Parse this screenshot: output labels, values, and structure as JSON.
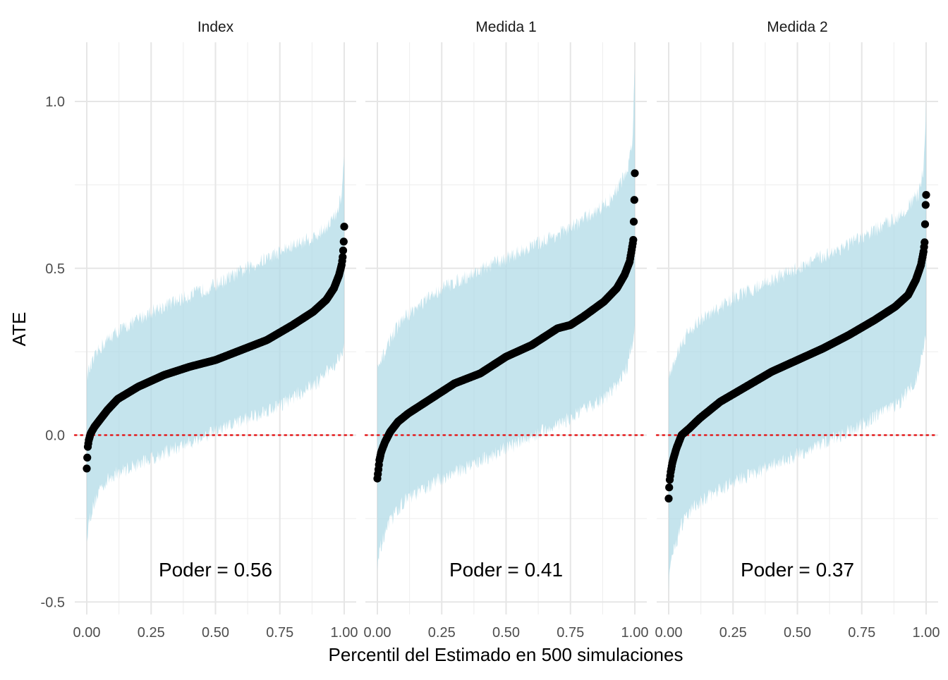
{
  "chart_data": {
    "type": "scatter",
    "xlabel": "Percentil del Estimado en 500 simulaciones",
    "ylabel": "ATE",
    "xlim": [
      0,
      1
    ],
    "ylim": [
      -0.5,
      1.1
    ],
    "x_ticks": [
      "0.00",
      "0.25",
      "0.50",
      "0.75",
      "1.00"
    ],
    "x_tick_values": [
      0,
      0.25,
      0.5,
      0.75,
      1.0
    ],
    "y_ticks": [
      "-0.5",
      "0.0",
      "0.5",
      "1.0"
    ],
    "y_tick_values": [
      -0.5,
      0,
      0.5,
      1.0
    ],
    "grid": true,
    "reference_line": {
      "y": 0,
      "style": "dotted",
      "color": "#e41a1c"
    },
    "n_simulations": 500,
    "band_color": "#add8e6",
    "point_color": "#000000",
    "panels": [
      {
        "title": "Index",
        "annotation": "Poder = 0.56",
        "estimate_curve": [
          {
            "x": 0.0,
            "y": -0.1
          },
          {
            "x": 0.004,
            "y": -0.035
          },
          {
            "x": 0.008,
            "y": -0.015
          },
          {
            "x": 0.015,
            "y": 0.005
          },
          {
            "x": 0.03,
            "y": 0.025
          },
          {
            "x": 0.05,
            "y": 0.045
          },
          {
            "x": 0.08,
            "y": 0.075
          },
          {
            "x": 0.12,
            "y": 0.108
          },
          {
            "x": 0.2,
            "y": 0.145
          },
          {
            "x": 0.3,
            "y": 0.18
          },
          {
            "x": 0.4,
            "y": 0.205
          },
          {
            "x": 0.5,
            "y": 0.225
          },
          {
            "x": 0.55,
            "y": 0.24
          },
          {
            "x": 0.6,
            "y": 0.255
          },
          {
            "x": 0.7,
            "y": 0.285
          },
          {
            "x": 0.8,
            "y": 0.33
          },
          {
            "x": 0.88,
            "y": 0.37
          },
          {
            "x": 0.93,
            "y": 0.405
          },
          {
            "x": 0.96,
            "y": 0.44
          },
          {
            "x": 0.98,
            "y": 0.48
          },
          {
            "x": 0.99,
            "y": 0.51
          },
          {
            "x": 0.995,
            "y": 0.54
          },
          {
            "x": 0.998,
            "y": 0.58
          },
          {
            "x": 1.0,
            "y": 0.625
          }
        ],
        "interval_lower": [
          {
            "x": 0.0,
            "y": -0.31
          },
          {
            "x": 0.01,
            "y": -0.25
          },
          {
            "x": 0.05,
            "y": -0.16
          },
          {
            "x": 0.1,
            "y": -0.12
          },
          {
            "x": 0.25,
            "y": -0.07
          },
          {
            "x": 0.5,
            "y": 0.01
          },
          {
            "x": 0.75,
            "y": 0.09
          },
          {
            "x": 0.9,
            "y": 0.16
          },
          {
            "x": 0.97,
            "y": 0.22
          },
          {
            "x": 1.0,
            "y": 0.27
          }
        ],
        "interval_upper": [
          {
            "x": 0.0,
            "y": 0.18
          },
          {
            "x": 0.05,
            "y": 0.26
          },
          {
            "x": 0.1,
            "y": 0.3
          },
          {
            "x": 0.25,
            "y": 0.37
          },
          {
            "x": 0.5,
            "y": 0.45
          },
          {
            "x": 0.75,
            "y": 0.55
          },
          {
            "x": 0.9,
            "y": 0.6
          },
          {
            "x": 0.97,
            "y": 0.66
          },
          {
            "x": 0.99,
            "y": 0.72
          },
          {
            "x": 1.0,
            "y": 0.84
          }
        ]
      },
      {
        "title": "Medida 1",
        "annotation": "Poder = 0.41",
        "estimate_curve": [
          {
            "x": 0.0,
            "y": -0.13
          },
          {
            "x": 0.003,
            "y": -0.11
          },
          {
            "x": 0.008,
            "y": -0.075
          },
          {
            "x": 0.015,
            "y": -0.05
          },
          {
            "x": 0.03,
            "y": -0.02
          },
          {
            "x": 0.05,
            "y": 0.01
          },
          {
            "x": 0.08,
            "y": 0.04
          },
          {
            "x": 0.12,
            "y": 0.065
          },
          {
            "x": 0.2,
            "y": 0.105
          },
          {
            "x": 0.3,
            "y": 0.155
          },
          {
            "x": 0.4,
            "y": 0.185
          },
          {
            "x": 0.5,
            "y": 0.235
          },
          {
            "x": 0.6,
            "y": 0.27
          },
          {
            "x": 0.7,
            "y": 0.32
          },
          {
            "x": 0.75,
            "y": 0.33
          },
          {
            "x": 0.8,
            "y": 0.355
          },
          {
            "x": 0.88,
            "y": 0.4
          },
          {
            "x": 0.93,
            "y": 0.44
          },
          {
            "x": 0.96,
            "y": 0.48
          },
          {
            "x": 0.98,
            "y": 0.52
          },
          {
            "x": 0.99,
            "y": 0.565
          },
          {
            "x": 0.995,
            "y": 0.59
          },
          {
            "x": 0.997,
            "y": 0.69
          },
          {
            "x": 0.999,
            "y": 0.72
          },
          {
            "x": 1.0,
            "y": 0.785
          }
        ],
        "interval_lower": [
          {
            "x": 0.0,
            "y": -0.41
          },
          {
            "x": 0.01,
            "y": -0.34
          },
          {
            "x": 0.05,
            "y": -0.26
          },
          {
            "x": 0.1,
            "y": -0.2
          },
          {
            "x": 0.25,
            "y": -0.13
          },
          {
            "x": 0.5,
            "y": -0.04
          },
          {
            "x": 0.75,
            "y": 0.05
          },
          {
            "x": 0.9,
            "y": 0.12
          },
          {
            "x": 0.97,
            "y": 0.2
          },
          {
            "x": 1.0,
            "y": 0.32
          }
        ],
        "interval_upper": [
          {
            "x": 0.0,
            "y": 0.19
          },
          {
            "x": 0.05,
            "y": 0.29
          },
          {
            "x": 0.1,
            "y": 0.35
          },
          {
            "x": 0.25,
            "y": 0.44
          },
          {
            "x": 0.5,
            "y": 0.53
          },
          {
            "x": 0.75,
            "y": 0.62
          },
          {
            "x": 0.9,
            "y": 0.7
          },
          {
            "x": 0.97,
            "y": 0.79
          },
          {
            "x": 0.99,
            "y": 0.88
          },
          {
            "x": 1.0,
            "y": 1.1
          }
        ]
      },
      {
        "title": "Medida 2",
        "annotation": "Poder = 0.37",
        "estimate_curve": [
          {
            "x": 0.0,
            "y": -0.19
          },
          {
            "x": 0.003,
            "y": -0.14
          },
          {
            "x": 0.008,
            "y": -0.11
          },
          {
            "x": 0.015,
            "y": -0.08
          },
          {
            "x": 0.03,
            "y": -0.04
          },
          {
            "x": 0.05,
            "y": 0.0
          },
          {
            "x": 0.08,
            "y": 0.02
          },
          {
            "x": 0.12,
            "y": 0.05
          },
          {
            "x": 0.2,
            "y": 0.1
          },
          {
            "x": 0.3,
            "y": 0.145
          },
          {
            "x": 0.4,
            "y": 0.19
          },
          {
            "x": 0.5,
            "y": 0.225
          },
          {
            "x": 0.6,
            "y": 0.26
          },
          {
            "x": 0.7,
            "y": 0.3
          },
          {
            "x": 0.8,
            "y": 0.345
          },
          {
            "x": 0.88,
            "y": 0.385
          },
          {
            "x": 0.93,
            "y": 0.42
          },
          {
            "x": 0.96,
            "y": 0.465
          },
          {
            "x": 0.98,
            "y": 0.51
          },
          {
            "x": 0.99,
            "y": 0.55
          },
          {
            "x": 0.995,
            "y": 0.585
          },
          {
            "x": 0.997,
            "y": 0.68
          },
          {
            "x": 0.999,
            "y": 0.7
          },
          {
            "x": 1.0,
            "y": 0.72
          }
        ],
        "interval_lower": [
          {
            "x": 0.0,
            "y": -0.46
          },
          {
            "x": 0.01,
            "y": -0.37
          },
          {
            "x": 0.05,
            "y": -0.27
          },
          {
            "x": 0.1,
            "y": -0.21
          },
          {
            "x": 0.25,
            "y": -0.14
          },
          {
            "x": 0.5,
            "y": -0.06
          },
          {
            "x": 0.75,
            "y": 0.03
          },
          {
            "x": 0.9,
            "y": 0.1
          },
          {
            "x": 0.97,
            "y": 0.18
          },
          {
            "x": 1.0,
            "y": 0.3
          }
        ],
        "interval_upper": [
          {
            "x": 0.0,
            "y": 0.18
          },
          {
            "x": 0.05,
            "y": 0.28
          },
          {
            "x": 0.1,
            "y": 0.33
          },
          {
            "x": 0.25,
            "y": 0.41
          },
          {
            "x": 0.5,
            "y": 0.5
          },
          {
            "x": 0.75,
            "y": 0.59
          },
          {
            "x": 0.9,
            "y": 0.66
          },
          {
            "x": 0.97,
            "y": 0.72
          },
          {
            "x": 0.99,
            "y": 0.8
          },
          {
            "x": 1.0,
            "y": 1.0
          }
        ]
      }
    ]
  }
}
